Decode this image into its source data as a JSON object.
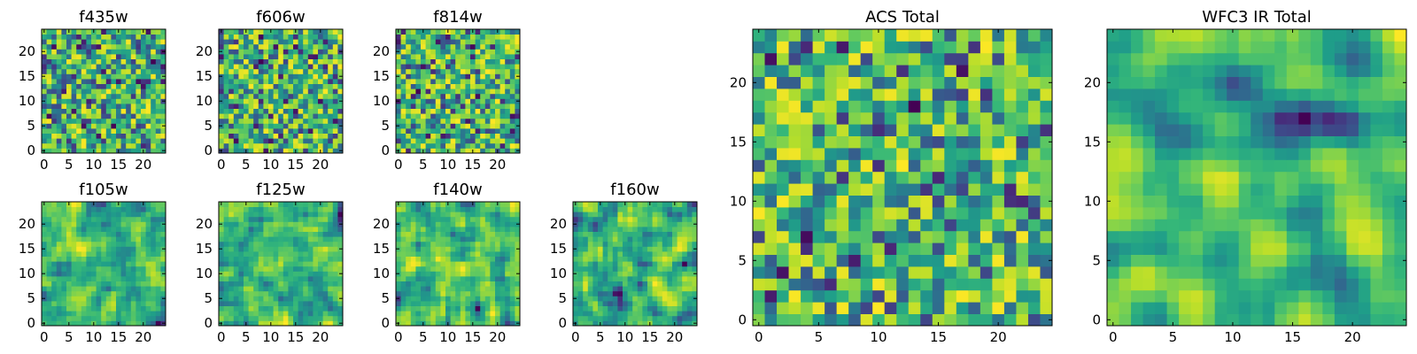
{
  "chart_data": [
    {
      "type": "heatmap",
      "title": "f435w",
      "size": 25,
      "seed": 11,
      "smooth": 0,
      "colormap": "viridis",
      "x_ticks": [
        0,
        5,
        10,
        15,
        20
      ],
      "y_ticks": [
        0,
        5,
        10,
        15,
        20
      ]
    },
    {
      "type": "heatmap",
      "title": "f606w",
      "size": 25,
      "seed": 23,
      "smooth": 0,
      "colormap": "viridis",
      "x_ticks": [
        0,
        5,
        10,
        15,
        20
      ],
      "y_ticks": [
        0,
        5,
        10,
        15,
        20
      ]
    },
    {
      "type": "heatmap",
      "title": "f814w",
      "size": 25,
      "seed": 37,
      "smooth": 0,
      "colormap": "viridis",
      "x_ticks": [
        0,
        5,
        10,
        15,
        20
      ],
      "y_ticks": [
        0,
        5,
        10,
        15,
        20
      ]
    },
    {
      "type": "heatmap",
      "title": "f105w",
      "size": 25,
      "seed": 41,
      "smooth": 1,
      "colormap": "viridis",
      "x_ticks": [
        0,
        5,
        10,
        15,
        20
      ],
      "y_ticks": [
        0,
        5,
        10,
        15,
        20
      ]
    },
    {
      "type": "heatmap",
      "title": "f125w",
      "size": 25,
      "seed": 53,
      "smooth": 1,
      "colormap": "viridis",
      "x_ticks": [
        0,
        5,
        10,
        15,
        20
      ],
      "y_ticks": [
        0,
        5,
        10,
        15,
        20
      ]
    },
    {
      "type": "heatmap",
      "title": "f140w",
      "size": 25,
      "seed": 67,
      "smooth": 1,
      "colormap": "viridis",
      "x_ticks": [
        0,
        5,
        10,
        15,
        20
      ],
      "y_ticks": [
        0,
        5,
        10,
        15,
        20
      ]
    },
    {
      "type": "heatmap",
      "title": "f160w",
      "size": 25,
      "seed": 79,
      "smooth": 1,
      "colormap": "viridis",
      "x_ticks": [
        0,
        5,
        10,
        15,
        20
      ],
      "y_ticks": [
        0,
        5,
        10,
        15,
        20
      ]
    },
    {
      "type": "heatmap",
      "title": "ACS Total",
      "size": 25,
      "seed": 83,
      "smooth": 0,
      "colormap": "viridis",
      "x_ticks": [
        0,
        5,
        10,
        15,
        20
      ],
      "y_ticks": [
        0,
        5,
        10,
        15,
        20
      ]
    },
    {
      "type": "heatmap",
      "title": "WFC3 IR Total",
      "size": 25,
      "seed": 97,
      "smooth": 2,
      "colormap": "viridis",
      "x_ticks": [
        0,
        5,
        10,
        15,
        20
      ],
      "y_ticks": [
        0,
        5,
        10,
        15,
        20
      ]
    }
  ]
}
